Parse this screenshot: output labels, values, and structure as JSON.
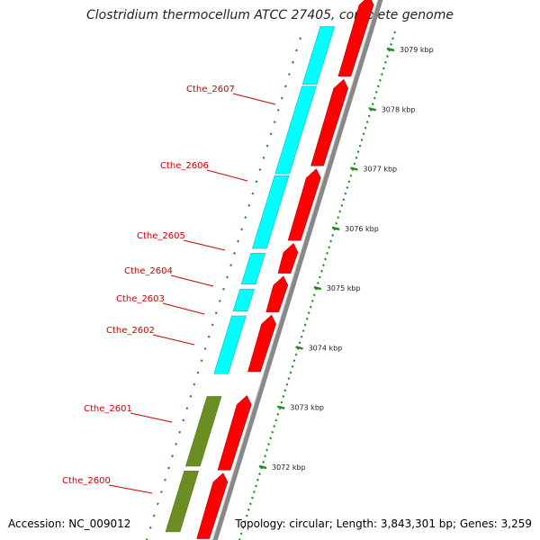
{
  "title": "Clostridium thermocellum ATCC 27405, complete genome",
  "footer": {
    "accession": "Accession: NC_009012",
    "summary": "Topology: circular; Length: 3,843,301 bp; Genes: 3,259"
  },
  "colors": {
    "cds_forward": "#ff0000",
    "cds_reverse": "#00ffff",
    "reverse_special": "#6b8e23",
    "backbone": "#888888",
    "gene_label": "#cc0000",
    "ruler": "#228b22",
    "ruler_label": "#222222"
  },
  "genes": [
    {
      "name": "Cthe_2607",
      "kbp_start": 3078.4,
      "kbp_end": 3079.4,
      "strand": "reverse",
      "color": "cyan"
    },
    {
      "name": "Cthe_2606",
      "kbp_start": 3076.9,
      "kbp_end": 3078.4,
      "strand": "reverse",
      "color": "cyan"
    },
    {
      "name": "Cthe_2605",
      "kbp_start": 3075.65,
      "kbp_end": 3076.9,
      "strand": "reverse",
      "color": "cyan"
    },
    {
      "name": "Cthe_2604",
      "kbp_start": 3075.05,
      "kbp_end": 3075.6,
      "strand": "reverse",
      "color": "cyan"
    },
    {
      "name": "Cthe_2603",
      "kbp_start": 3074.6,
      "kbp_end": 3075.0,
      "strand": "reverse",
      "color": "cyan"
    },
    {
      "name": "Cthe_2602",
      "kbp_start": 3073.55,
      "kbp_end": 3074.55,
      "strand": "reverse",
      "color": "cyan"
    },
    {
      "name": "Cthe_2601",
      "kbp_start": 3072.0,
      "kbp_end": 3073.2,
      "strand": "reverse",
      "color": "olive"
    },
    {
      "name": "Cthe_2600",
      "kbp_start": 3070.9,
      "kbp_end": 3071.95,
      "strand": "reverse",
      "color": "olive"
    }
  ],
  "forward_genes": [
    {
      "kbp_start": 3078.55,
      "kbp_end": 3079.9
    },
    {
      "kbp_start": 3077.05,
      "kbp_end": 3078.5
    },
    {
      "kbp_start": 3075.8,
      "kbp_end": 3077.0
    },
    {
      "kbp_start": 3075.25,
      "kbp_end": 3075.75
    },
    {
      "kbp_start": 3074.6,
      "kbp_end": 3075.2
    },
    {
      "kbp_start": 3073.6,
      "kbp_end": 3074.55
    },
    {
      "kbp_start": 3071.95,
      "kbp_end": 3073.2
    },
    {
      "kbp_start": 3070.8,
      "kbp_end": 3071.9
    }
  ],
  "ruler": {
    "major_ticks": [
      {
        "kbp": 3079,
        "label": "3079 kbp"
      },
      {
        "kbp": 3078,
        "label": "3078 kbp"
      },
      {
        "kbp": 3077,
        "label": "3077 kbp"
      },
      {
        "kbp": 3076,
        "label": "3076 kbp"
      },
      {
        "kbp": 3075,
        "label": "3075 kbp"
      },
      {
        "kbp": 3074,
        "label": "3074 kbp"
      },
      {
        "kbp": 3073,
        "label": "3073 kbp"
      },
      {
        "kbp": 3072,
        "label": "3072 kbp"
      }
    ],
    "minor_step_kbp": 0.1
  }
}
